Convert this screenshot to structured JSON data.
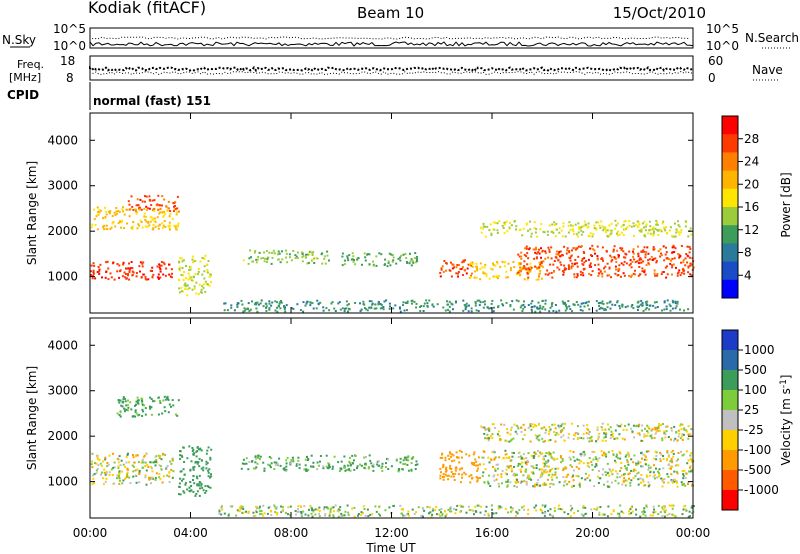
{
  "header": {
    "station": "Kodiak (fitACF)",
    "beam": "Beam 10",
    "date": "15/Oct/2010"
  },
  "top_panels": {
    "nsky_label": "N.Sky",
    "nsky_ticks": [
      "10^5",
      "10^0"
    ],
    "nsearch_label": "N.Search",
    "nsearch_ticks": [
      "10^5",
      "10^0"
    ],
    "freq_label_line1": "Freq.",
    "freq_label_line2": "[MHz]",
    "freq_ticks": [
      "18",
      "8"
    ],
    "nave_label": "Nave",
    "nave_ticks": [
      "60",
      "0"
    ],
    "cpid_label": "CPID",
    "cpid_text": "normal (fast) 151"
  },
  "x_axis": {
    "label": "Time UT",
    "ticks": [
      "00:00",
      "04:00",
      "08:00",
      "12:00",
      "16:00",
      "20:00",
      "00:00"
    ]
  },
  "y_axis": {
    "label": "Slant Range [km]",
    "ticks": [
      "4000",
      "3000",
      "2000",
      "1000"
    ]
  },
  "power_colorbar": {
    "label": "Power [dB]",
    "ticks": [
      "28",
      "24",
      "20",
      "16",
      "12",
      "8",
      "4"
    ],
    "colors": [
      "#ff0000",
      "#ff3a00",
      "#ff7f00",
      "#ffb400",
      "#ffe600",
      "#9ccc3c",
      "#3c9c5a",
      "#2a7a9c",
      "#1a4cc8",
      "#0000ff"
    ]
  },
  "velocity_colorbar": {
    "label": "Velocity [m s",
    "label_sup": "-1",
    "label_end": "]",
    "ticks": [
      "1000",
      "500",
      "100",
      "25",
      "-25",
      "-100",
      "-500",
      "-1000"
    ],
    "colors": [
      "#1c3cc8",
      "#2a6aa8",
      "#3c9c5a",
      "#7ccc3c",
      "#c0c0c0",
      "#ffd000",
      "#ff9a00",
      "#ff5a00",
      "#ff0000"
    ]
  },
  "chart_data": [
    {
      "type": "heatmap",
      "title": "Power",
      "xlabel": "Time UT",
      "ylabel": "Slant Range [km]",
      "xlim": [
        0,
        24
      ],
      "ylim": [
        200,
        4600
      ],
      "zlim": [
        0,
        32
      ],
      "zlabel": "Power [dB]",
      "regions": [
        {
          "t0": 0.0,
          "t1": 3.3,
          "r_lo": 950,
          "r_hi": 1350,
          "z": 28
        },
        {
          "t0": 1.5,
          "t1": 3.5,
          "r_lo": 2450,
          "r_hi": 2800,
          "z": 27
        },
        {
          "t0": 0.0,
          "t1": 3.5,
          "r_lo": 2050,
          "r_hi": 2550,
          "z": 20
        },
        {
          "t0": 3.5,
          "t1": 4.8,
          "r_lo": 600,
          "r_hi": 1500,
          "z": 16
        },
        {
          "t0": 6.0,
          "t1": 9.5,
          "r_lo": 1300,
          "r_hi": 1600,
          "z": 14
        },
        {
          "t0": 10.0,
          "t1": 13.0,
          "r_lo": 1250,
          "r_hi": 1550,
          "z": 12
        },
        {
          "t0": 13.9,
          "t1": 15.2,
          "r_lo": 1000,
          "r_hi": 1400,
          "z": 27
        },
        {
          "t0": 15.0,
          "t1": 18.0,
          "r_lo": 950,
          "r_hi": 1350,
          "z": 20
        },
        {
          "t0": 17.0,
          "t1": 24.0,
          "r_lo": 1000,
          "r_hi": 1700,
          "z": 27
        },
        {
          "t0": 15.5,
          "t1": 24.0,
          "r_lo": 1900,
          "r_hi": 2250,
          "z": 16
        },
        {
          "t0": 5.0,
          "t1": 24.0,
          "r_lo": 250,
          "r_hi": 500,
          "z": 10
        }
      ]
    },
    {
      "type": "heatmap",
      "title": "Velocity",
      "xlabel": "Time UT",
      "ylabel": "Slant Range [km]",
      "xlim": [
        0,
        24
      ],
      "ylim": [
        200,
        4600
      ],
      "zlim": [
        -1000,
        1000
      ],
      "zlabel": "Velocity [m s-1]",
      "regions": [
        {
          "t0": 0.0,
          "t1": 3.3,
          "r_lo": 950,
          "r_hi": 1650,
          "z": 0
        },
        {
          "t0": 1.0,
          "t1": 3.5,
          "r_lo": 2450,
          "r_hi": 2900,
          "z": 200
        },
        {
          "t0": 3.5,
          "t1": 4.8,
          "r_lo": 700,
          "r_hi": 1800,
          "z": 300
        },
        {
          "t0": 6.0,
          "t1": 13.0,
          "r_lo": 1250,
          "r_hi": 1600,
          "z": 150
        },
        {
          "t0": 13.9,
          "t1": 15.5,
          "r_lo": 1000,
          "r_hi": 1700,
          "z": -300
        },
        {
          "t0": 15.5,
          "t1": 24.0,
          "r_lo": 900,
          "r_hi": 1700,
          "z": 0
        },
        {
          "t0": 15.5,
          "t1": 24.0,
          "r_lo": 1900,
          "r_hi": 2300,
          "z": 0
        },
        {
          "t0": 5.0,
          "t1": 24.0,
          "r_lo": 250,
          "r_hi": 500,
          "z": 50
        }
      ]
    }
  ]
}
